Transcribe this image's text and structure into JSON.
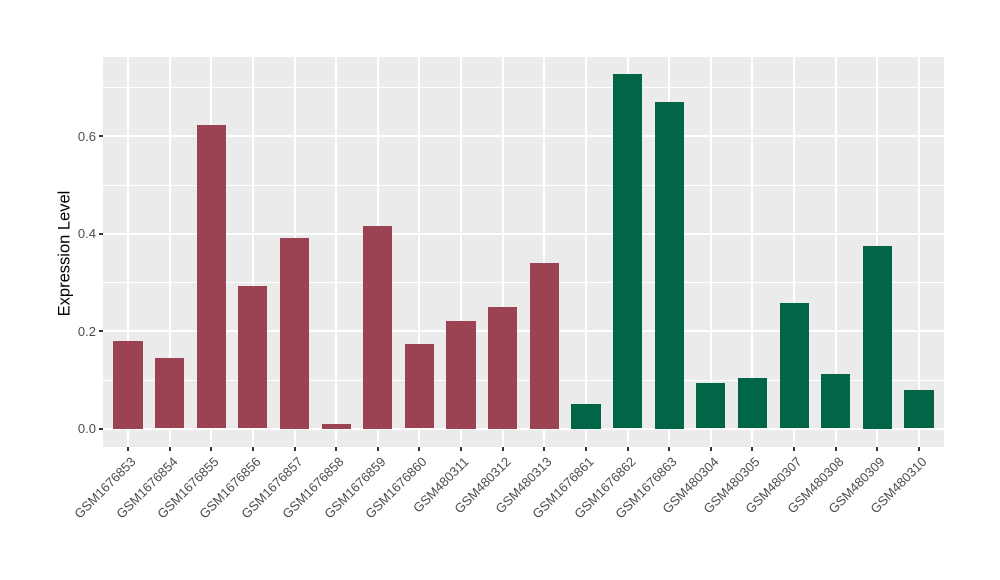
{
  "chart_data": {
    "type": "bar",
    "title": "",
    "xlabel": "",
    "ylabel": "Expression Level",
    "ylim": [
      0,
      0.762
    ],
    "yticks": [
      0.0,
      0.2,
      0.4,
      0.6
    ],
    "ytick_labels": [
      "0.0",
      "0.2",
      "0.4",
      "0.6"
    ],
    "minor_gridlines": [
      0.1,
      0.3,
      0.5,
      0.7
    ],
    "grid": "on",
    "legend_position": "none",
    "categories": [
      "GSM1676853",
      "GSM1676854",
      "GSM1676855",
      "GSM1676856",
      "GSM1676857",
      "GSM1676858",
      "GSM1676859",
      "GSM1676860",
      "GSM480311",
      "GSM480312",
      "GSM480313",
      "GSM1676861",
      "GSM1676862",
      "GSM1676863",
      "GSM480304",
      "GSM480305",
      "GSM480307",
      "GSM480308",
      "GSM480309",
      "GSM480310"
    ],
    "values": [
      0.18,
      0.144,
      0.622,
      0.293,
      0.39,
      0.01,
      0.415,
      0.173,
      0.22,
      0.25,
      0.34,
      0.05,
      0.727,
      0.67,
      0.093,
      0.103,
      0.257,
      0.112,
      0.375,
      0.078
    ],
    "groups": [
      "maroon",
      "maroon",
      "maroon",
      "maroon",
      "maroon",
      "maroon",
      "maroon",
      "maroon",
      "maroon",
      "maroon",
      "maroon",
      "green",
      "green",
      "green",
      "green",
      "green",
      "green",
      "green",
      "green",
      "green"
    ],
    "colors": {
      "maroon": "#9B4352",
      "green": "#006647",
      "panel_bg": "#EBEBEB",
      "grid": "#FFFFFF",
      "tick_label": "#4D4D4D",
      "tick_mark": "#333333",
      "axis_title": "#000000"
    }
  }
}
